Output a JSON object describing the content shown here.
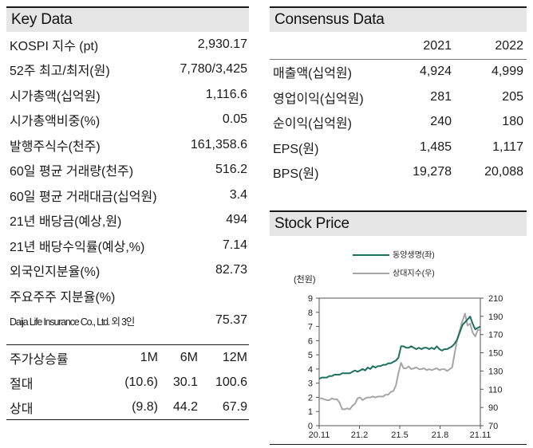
{
  "key_data": {
    "title": "Key Data",
    "rows": [
      {
        "label": "KOSPI 지수 (pt)",
        "value": "2,930.17"
      },
      {
        "label": "52주 최고/최저(원)",
        "value": "7,780/3,425"
      },
      {
        "label": "시가총액(십억원)",
        "value": "1,116.6"
      },
      {
        "label": "시가총액비중(%)",
        "value": "0.05"
      },
      {
        "label": "발행주식수(천주)",
        "value": "161,358.6"
      },
      {
        "label": "60일 평균 거래량(천주)",
        "value": "516.2"
      },
      {
        "label": "60일 평균 거래대금(십억원)",
        "value": "3.4"
      },
      {
        "label": "21년 배당금(예상,원)",
        "value": "494"
      },
      {
        "label": "21년 배당수익률(예상,%)",
        "value": "7.14"
      },
      {
        "label": "외국인지분율(%)",
        "value": "82.73"
      },
      {
        "label": "주요주주 지분율(%)",
        "value": ""
      },
      {
        "label": "Daija Life Insurance Co., Ltd. 외 3인",
        "value": "75.37"
      }
    ]
  },
  "price_change": {
    "headers": [
      "주가상승률",
      "1M",
      "6M",
      "12M"
    ],
    "rows": [
      {
        "label": "절대",
        "m1": "(10.6)",
        "m6": "30.1",
        "m12": "100.6"
      },
      {
        "label": "상대",
        "m1": "(9.8)",
        "m6": "44.2",
        "m12": "67.9"
      }
    ]
  },
  "consensus": {
    "title": "Consensus Data",
    "years": [
      "2021",
      "2022"
    ],
    "rows": [
      {
        "label": "매출액(십억원)",
        "y2021": "4,924",
        "y2022": "4,999"
      },
      {
        "label": "영업이익(십억원)",
        "y2021": "281",
        "y2022": "205"
      },
      {
        "label": "순이익(십억원)",
        "y2021": "240",
        "y2022": "180"
      },
      {
        "label": "EPS(원)",
        "y2021": "1,485",
        "y2022": "1,117"
      },
      {
        "label": "BPS(원)",
        "y2021": "19,278",
        "y2022": "20,088"
      }
    ]
  },
  "stock_price": {
    "title": "Stock Price",
    "unit_label": "(천원)",
    "colors": {
      "primary": "#1e7060",
      "secondary": "#a6a6a6",
      "axis": "#555555"
    },
    "chart_data": {
      "type": "line",
      "title": "Stock Price",
      "ylabel": "(천원)",
      "x_tick_labels": [
        "20.11",
        "21.2",
        "21.5",
        "21.8",
        "21.11"
      ],
      "left_axis": {
        "min": 0,
        "max": 9,
        "ticks": [
          "0",
          "1",
          "2",
          "3",
          "4",
          "5",
          "6",
          "7",
          "8",
          "9"
        ]
      },
      "right_axis": {
        "min": 70,
        "max": 210,
        "ticks": [
          "70",
          "90",
          "110",
          "130",
          "150",
          "170",
          "190",
          "210"
        ]
      },
      "series": [
        {
          "name": "동양생명(좌)",
          "axis": "left",
          "values": [
            3.3,
            3.4,
            3.4,
            3.4,
            3.5,
            3.5,
            3.6,
            3.6,
            3.6,
            3.7,
            3.7,
            3.7,
            3.7,
            3.8,
            3.9,
            3.8,
            3.9,
            4.0,
            3.9,
            4.1,
            4.0,
            4.2,
            4.1,
            4.2,
            4.2,
            4.3,
            4.3,
            4.4,
            4.4,
            4.5,
            4.6,
            4.8,
            5.6,
            5.6,
            5.5,
            5.5,
            5.6,
            5.5,
            5.4,
            5.5,
            5.4,
            5.5,
            5.5,
            5.4,
            5.5,
            5.4,
            5.6,
            5.4,
            5.3,
            5.4,
            5.4,
            5.5,
            5.6,
            5.8,
            6.1,
            6.6,
            7.1,
            7.3,
            7.5,
            7.7,
            7.2,
            6.8,
            6.9,
            7.0
          ]
        },
        {
          "name": "상대지수(우)",
          "axis": "right",
          "values": [
            100,
            100,
            99,
            98,
            98,
            100,
            99,
            99,
            95,
            88,
            88,
            89,
            88,
            92,
            94,
            100,
            101,
            98,
            100,
            101,
            101,
            102,
            101,
            102,
            102,
            102,
            104,
            104,
            107,
            108,
            114,
            128,
            139,
            133,
            133,
            135,
            132,
            133,
            134,
            132,
            132,
            133,
            131,
            132,
            131,
            132,
            133,
            131,
            132,
            132,
            130,
            132,
            134,
            150,
            165,
            175,
            185,
            193,
            180,
            182,
            172,
            168,
            175,
            175
          ]
        }
      ]
    }
  }
}
